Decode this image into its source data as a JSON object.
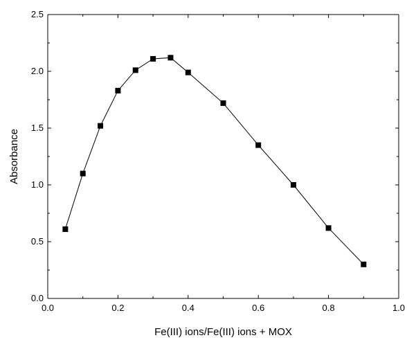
{
  "chart_data": {
    "type": "line",
    "title": "",
    "xlabel": "Fe(III) ions/Fe(III) ions + MOX",
    "ylabel": "Absorbance",
    "xlim": [
      0.0,
      1.0
    ],
    "ylim": [
      0.0,
      2.5
    ],
    "x_ticks": [
      "0.0",
      "0.2",
      "0.4",
      "0.6",
      "0.8",
      "1.0"
    ],
    "y_ticks": [
      "0.0",
      "0.5",
      "1.0",
      "1.5",
      "2.0",
      "2.5"
    ],
    "grid": false,
    "series": [
      {
        "x": [
          0.05,
          0.1,
          0.15,
          0.2,
          0.25,
          0.3,
          0.35,
          0.4,
          0.5,
          0.6,
          0.7,
          0.8,
          0.9
        ],
        "y": [
          0.61,
          1.1,
          1.52,
          1.83,
          2.01,
          2.11,
          2.12,
          1.99,
          1.72,
          1.35,
          1.0,
          0.62,
          0.3
        ],
        "marker": "square",
        "color": "#000000"
      }
    ]
  }
}
